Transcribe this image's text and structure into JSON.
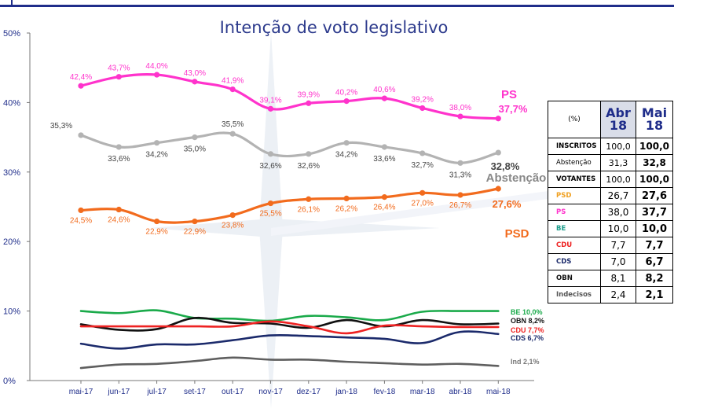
{
  "chart_data": {
    "type": "line",
    "title": "Intenção de voto legislativo",
    "xlabel": "",
    "ylabel": "",
    "ylim": [
      0,
      50
    ],
    "yticks": [
      "0%",
      "10%",
      "20%",
      "30%",
      "40%",
      "50%"
    ],
    "categories": [
      "mai-17",
      "jun-17",
      "jul-17",
      "set-17",
      "out-17",
      "nov-17",
      "dez-17",
      "jan-18",
      "fev-18",
      "mar-18",
      "abr-18",
      "mai-18"
    ],
    "series": [
      {
        "name": "PS",
        "legend": "PS",
        "color": "#ff33cc",
        "values": [
          42.4,
          43.7,
          44.0,
          43.0,
          41.9,
          39.1,
          39.9,
          40.2,
          40.6,
          39.2,
          38.0,
          37.7
        ],
        "labels": [
          "42,4%",
          "43,7%",
          "44,0%",
          "43,0%",
          "41,9%",
          "39,1%",
          "39,9%",
          "40,2%",
          "40,6%",
          "39,2%",
          "38,0%",
          "37,7%"
        ]
      },
      {
        "name": "Abstenção",
        "legend": "Abstenção",
        "color": "#b3b3b3",
        "values": [
          35.3,
          33.6,
          34.2,
          35.0,
          35.5,
          32.6,
          32.6,
          34.2,
          33.6,
          32.7,
          31.3,
          32.8
        ],
        "labels": [
          "35,3%",
          "33,6%",
          "34,2%",
          "35,0%",
          "35,5%",
          "32,6%",
          "32,6%",
          "34,2%",
          "33,6%",
          "32,7%",
          "31,3%",
          "32,8%"
        ]
      },
      {
        "name": "PSD",
        "legend": "PSD",
        "color": "#f26b1d",
        "values": [
          24.5,
          24.6,
          22.9,
          22.9,
          23.8,
          25.5,
          26.1,
          26.2,
          26.4,
          27.0,
          26.7,
          27.6
        ],
        "labels": [
          "24,5%",
          "24,6%",
          "22,9%",
          "22,9%",
          "23,8%",
          "25,5%",
          "26,1%",
          "26,2%",
          "26,4%",
          "27,0%",
          "26,7%",
          "27,6%"
        ]
      },
      {
        "name": "BE",
        "label": "BE 10,0%",
        "color": "#1aaa4a",
        "values": [
          10.0,
          9.7,
          10.1,
          9.0,
          8.9,
          8.6,
          9.3,
          9.1,
          8.7,
          9.9,
          10.0,
          10.0
        ]
      },
      {
        "name": "OBN",
        "label": "OBN 8,2%",
        "color": "#111111",
        "values": [
          8.1,
          7.3,
          7.4,
          9.0,
          8.3,
          8.2,
          7.6,
          8.7,
          7.8,
          8.7,
          8.1,
          8.2
        ]
      },
      {
        "name": "CDU",
        "label": "CDU 7,7%",
        "color": "#ee2222",
        "values": [
          7.8,
          7.8,
          7.8,
          7.8,
          7.8,
          8.5,
          7.8,
          6.8,
          7.9,
          7.8,
          7.7,
          7.7
        ]
      },
      {
        "name": "CDS",
        "label": "CDS 6,7%",
        "color": "#1b2a6b",
        "values": [
          5.3,
          4.6,
          5.2,
          5.2,
          5.8,
          6.5,
          6.4,
          6.2,
          6.0,
          5.4,
          7.0,
          6.7
        ]
      },
      {
        "name": "Ind",
        "label": "Ind 2,1%",
        "color": "#5f5f5f",
        "values": [
          1.8,
          2.3,
          2.4,
          2.8,
          3.3,
          3.0,
          3.0,
          2.7,
          2.5,
          2.3,
          2.4,
          2.1
        ]
      }
    ],
    "callouts": [
      {
        "series": "Abstenção",
        "value": "32,8%",
        "label": "Abstenção"
      },
      {
        "series": "PS",
        "value": "37,7%",
        "label": "PS"
      },
      {
        "series": "PSD",
        "value": "27,6%",
        "label": "PSD"
      }
    ]
  },
  "table": {
    "unit_label": "(%)",
    "col1": "Abr 18",
    "col2": "Mai 18",
    "rows": [
      {
        "label": "INSCRITOS",
        "abr": "100,0",
        "mai": "100,0"
      },
      {
        "label": "Abstenção",
        "abr": "31,3",
        "mai": "32,8"
      },
      {
        "label": "VOTANTES",
        "abr": "100,0",
        "mai": "100,0"
      },
      {
        "label": "PSD",
        "abr": "26,7",
        "mai": "27,6",
        "color": "#f0a020"
      },
      {
        "label": "PS",
        "abr": "38,0",
        "mai": "37,7",
        "color": "#ff33cc"
      },
      {
        "label": "BE",
        "abr": "10,0",
        "mai": "10,0",
        "color": "#1a9b8a"
      },
      {
        "label": "CDU",
        "abr": "7,7",
        "mai": "7,7",
        "color": "#ee2222"
      },
      {
        "label": "CDS",
        "abr": "7,0",
        "mai": "6,7",
        "color": "#1b2a6b"
      },
      {
        "label": "OBN",
        "abr": "8,1",
        "mai": "8,2",
        "color": "#111111"
      },
      {
        "label": "Indecisos",
        "abr": "2,4",
        "mai": "2,1",
        "color": "#555555"
      }
    ]
  }
}
